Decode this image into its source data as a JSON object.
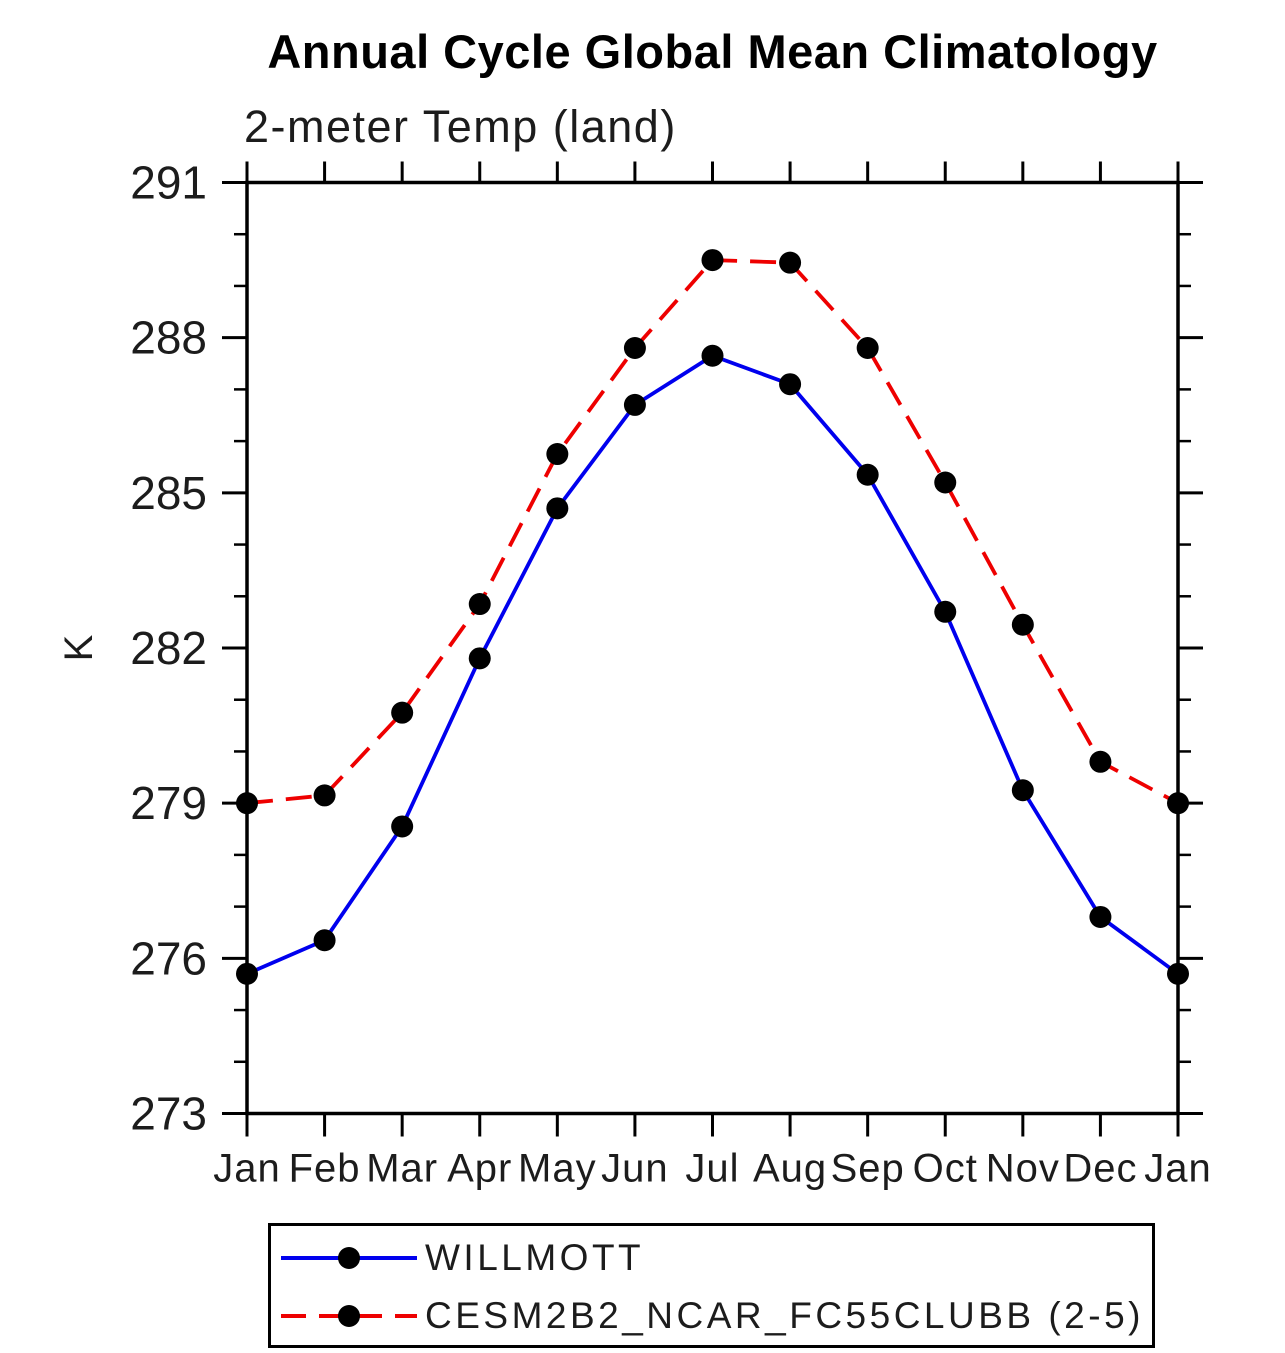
{
  "chart_data": {
    "type": "line",
    "title": "Annual Cycle Global Mean Climatology",
    "subtitle": "2-meter Temp (land)",
    "xlabel": "",
    "ylabel": "K",
    "categories": [
      "Jan",
      "Feb",
      "Mar",
      "Apr",
      "May",
      "Jun",
      "Jul",
      "Aug",
      "Sep",
      "Oct",
      "Nov",
      "Dec",
      "Jan"
    ],
    "ylim": [
      273,
      291
    ],
    "yticks_major": [
      273,
      276,
      279,
      282,
      285,
      288,
      291
    ],
    "ytick_minor_step": 1,
    "grid": false,
    "legend_position": "bottom",
    "frame_color": "#000000",
    "marker_color": "#000000",
    "series": [
      {
        "name": "WILLMOTT",
        "color": "#0000ee",
        "style": "solid",
        "marker": "circle",
        "values": [
          275.7,
          276.35,
          278.55,
          281.8,
          284.7,
          286.7,
          287.65,
          287.1,
          285.35,
          282.7,
          279.25,
          276.8,
          275.7
        ]
      },
      {
        "name": "CESM2B2_NCAR_FC55CLUBB (2-5)",
        "color": "#ee0000",
        "style": "dashed",
        "marker": "circle",
        "values": [
          279.0,
          279.15,
          280.75,
          282.85,
          285.75,
          287.8,
          289.5,
          289.45,
          287.8,
          285.2,
          282.45,
          279.8,
          279.0
        ]
      }
    ]
  }
}
